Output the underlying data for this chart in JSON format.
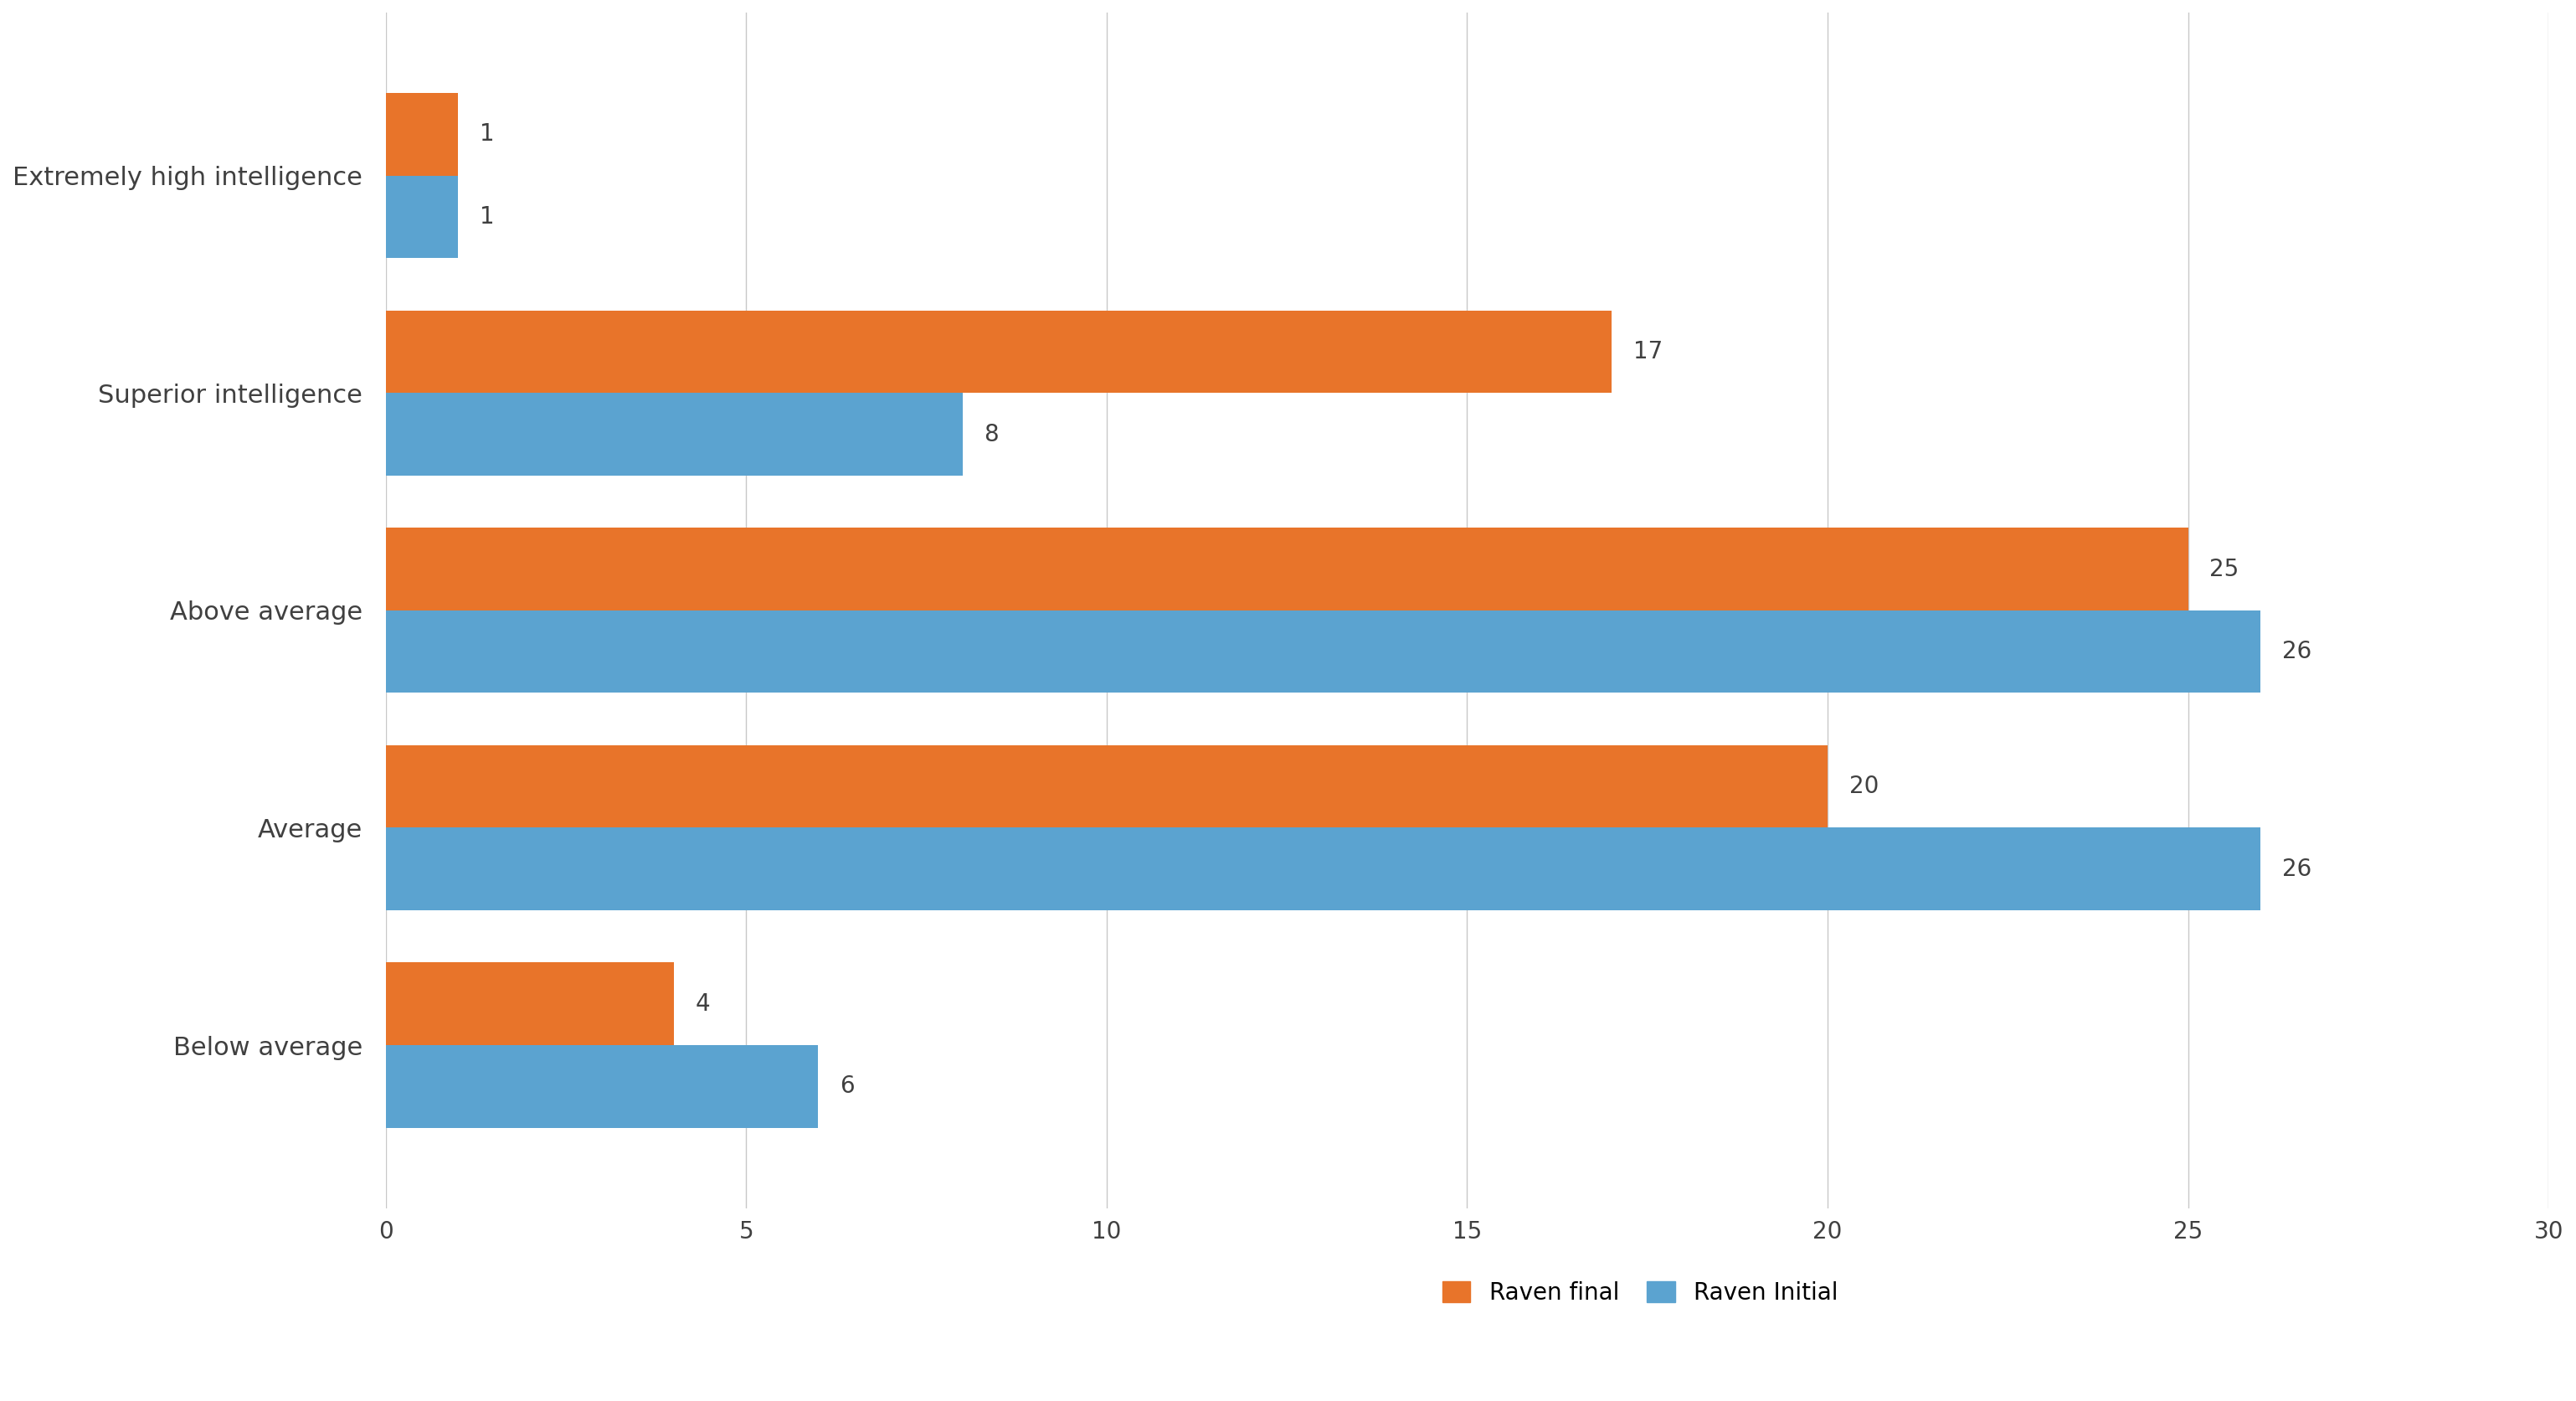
{
  "categories": [
    "Below average",
    "Average",
    "Above average",
    "Superior intelligence",
    "Extremely high intelligence"
  ],
  "raven_final": [
    4,
    20,
    25,
    17,
    1
  ],
  "raven_initial": [
    6,
    26,
    26,
    8,
    1
  ],
  "bar_color_final": "#E8742A",
  "bar_color_initial": "#5BA3D0",
  "xlim": [
    0,
    30
  ],
  "xticks": [
    0,
    5,
    10,
    15,
    20,
    25,
    30
  ],
  "legend_labels": [
    "Raven final",
    "Raven Initial"
  ],
  "bar_height": 0.38,
  "background_color": "#ffffff",
  "axes_background": "#ffffff",
  "grid_color": "#c8c8c8",
  "label_fontsize": 22,
  "tick_fontsize": 20,
  "legend_fontsize": 20,
  "value_fontsize": 20,
  "label_color": "#404040"
}
